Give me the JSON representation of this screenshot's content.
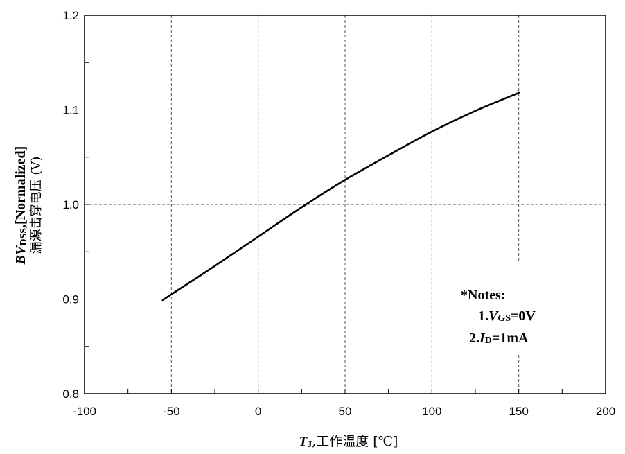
{
  "chart_data": {
    "type": "line",
    "xlabel": {
      "main": "T",
      "sub": "J",
      "rest": ",工作温度 [℃]"
    },
    "ylabel": {
      "line1_main": "BV",
      "line1_sub": "DSS",
      "line1_rest": ",[Normalized]",
      "line2": "漏源击穿电压 (V)"
    },
    "xlim": [
      -100,
      200
    ],
    "ylim": [
      0.8,
      1.2
    ],
    "xticks": [
      "-100",
      "-50",
      "0",
      "50",
      "100",
      "150",
      "200"
    ],
    "yticks": [
      "0.8",
      "0.9",
      "1.0",
      "1.1",
      "1.2"
    ],
    "grid": true,
    "series": [
      {
        "x": [
          -55,
          -50,
          -25,
          0,
          25,
          50,
          75,
          100,
          125,
          150
        ],
        "values": [
          0.899,
          0.905,
          0.935,
          0.966,
          0.997,
          1.026,
          1.052,
          1.077,
          1.099,
          1.118
        ]
      }
    ],
    "annotation": {
      "title": "*Notes:",
      "line1": {
        "prefix": "1.",
        "var": "V",
        "sub": "GS",
        "suffix": "=0V"
      },
      "line2": {
        "prefix": "2.",
        "var": "I",
        "sub": "D",
        "suffix": "=1mA"
      }
    }
  }
}
